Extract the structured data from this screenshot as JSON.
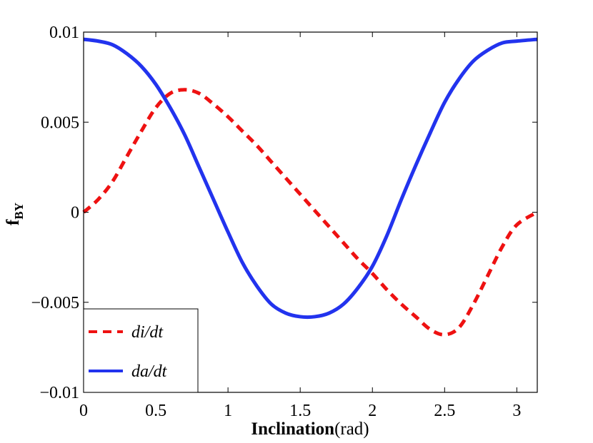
{
  "chart_data": {
    "type": "line",
    "title": "",
    "xlabel": {
      "bold": "Inclination",
      "unit": "(rad)"
    },
    "ylabel": {
      "main": "f",
      "sub": "BY"
    },
    "xlim": [
      0,
      3.1416
    ],
    "ylim": [
      -0.01,
      0.01
    ],
    "xticks": [
      {
        "value": 0,
        "label": "0"
      },
      {
        "value": 0.5,
        "label": "0.5"
      },
      {
        "value": 1,
        "label": "1"
      },
      {
        "value": 1.5,
        "label": "1.5"
      },
      {
        "value": 2,
        "label": "2"
      },
      {
        "value": 2.5,
        "label": "2.5"
      },
      {
        "value": 3,
        "label": "3"
      }
    ],
    "yticks": [
      {
        "value": -0.01,
        "label": "−0.01"
      },
      {
        "value": -0.005,
        "label": "−0.005"
      },
      {
        "value": 0,
        "label": "0"
      },
      {
        "value": 0.005,
        "label": "0.005"
      },
      {
        "value": 0.01,
        "label": "0.01"
      }
    ],
    "grid": false,
    "legend_position": "bottom-left",
    "series": [
      {
        "name": "di/dt",
        "color": "#ee1111",
        "style": "dashed",
        "x": [
          0,
          0.1,
          0.2,
          0.3,
          0.4,
          0.5,
          0.6,
          0.7,
          0.8,
          0.9,
          1.0,
          1.1,
          1.2,
          1.3,
          1.4,
          1.5,
          1.6,
          1.7,
          1.8,
          1.9,
          2.0,
          2.1,
          2.2,
          2.3,
          2.4,
          2.5,
          2.6,
          2.7,
          2.8,
          2.9,
          3.0,
          3.1416
        ],
        "values": [
          0,
          0.0007,
          0.0017,
          0.0031,
          0.0045,
          0.0058,
          0.0066,
          0.0068,
          0.0066,
          0.006,
          0.0053,
          0.0045,
          0.0037,
          0.0028,
          0.0019,
          0.001,
          0.0001,
          -0.0008,
          -0.0017,
          -0.0026,
          -0.0034,
          -0.0043,
          -0.0051,
          -0.0058,
          -0.0065,
          -0.0068,
          -0.0064,
          -0.0051,
          -0.0035,
          -0.0019,
          -0.0007,
          0
        ]
      },
      {
        "name": "da/dt",
        "color": "#2233ee",
        "style": "solid",
        "x": [
          0,
          0.1,
          0.2,
          0.3,
          0.4,
          0.5,
          0.6,
          0.7,
          0.8,
          0.9,
          1.0,
          1.1,
          1.2,
          1.3,
          1.4,
          1.5,
          1.6,
          1.7,
          1.8,
          1.9,
          2.0,
          2.1,
          2.2,
          2.3,
          2.4,
          2.5,
          2.6,
          2.7,
          2.8,
          2.9,
          3.0,
          3.1416
        ],
        "values": [
          0.0096,
          0.0095,
          0.0093,
          0.0088,
          0.0081,
          0.0071,
          0.0058,
          0.0043,
          0.0025,
          0.0007,
          -0.0011,
          -0.0028,
          -0.0041,
          -0.0051,
          -0.0056,
          -0.0058,
          -0.0058,
          -0.0056,
          -0.0051,
          -0.0042,
          -0.003,
          -0.0013,
          0.0007,
          0.0026,
          0.0044,
          0.0061,
          0.0074,
          0.0084,
          0.009,
          0.0094,
          0.0095,
          0.0096
        ]
      }
    ],
    "legend": [
      {
        "label": "di/dt",
        "series": 0
      },
      {
        "label": "da/dt",
        "series": 1
      }
    ]
  }
}
